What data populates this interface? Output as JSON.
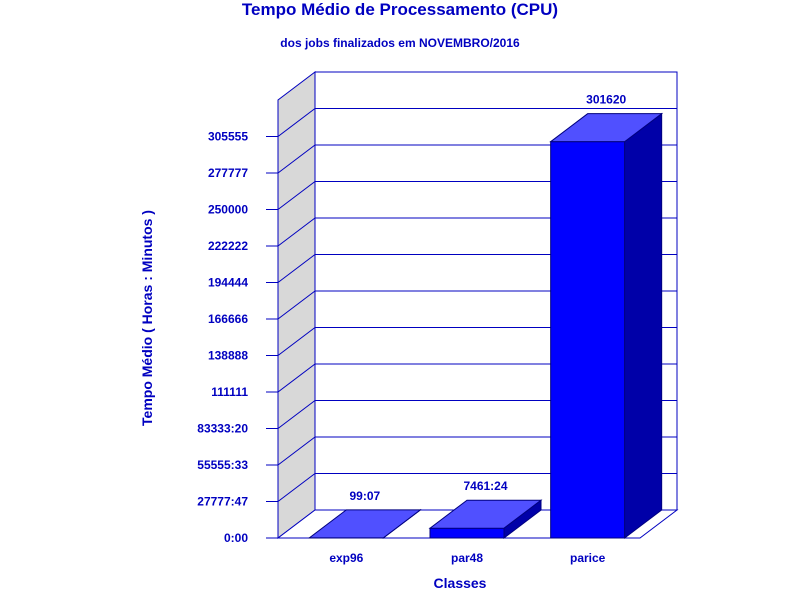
{
  "chart_title": "Tempo Médio de Processamento (CPU)",
  "chart_subtitle": "dos jobs finalizados em NOVEMBRO/2016",
  "colors": {
    "text": "#0000c0",
    "bar_front": "#0000ff",
    "bar_top": "#5050ff",
    "bar_side": "#0000a8",
    "grid": "#0000c0",
    "back_wall": "#ffffff",
    "side_wall": "#d8d8d8"
  },
  "chart_data": {
    "type": "bar",
    "title": "Tempo Médio de Processamento (CPU)",
    "subtitle": "dos jobs finalizados em NOVEMBRO/2016",
    "xlabel": "Classes",
    "ylabel": "Tempo Médio ( Horas : Minutos )",
    "categories": [
      "exp96",
      "par48",
      "parice"
    ],
    "values": [
      99.12,
      7461.4,
      301620
    ],
    "value_labels": [
      "99:07",
      "7461:24",
      "301620"
    ],
    "ylim": [
      0,
      333333.33
    ],
    "yticks": [
      0,
      27777.78,
      55555.56,
      83333.33,
      111111,
      138888,
      166666,
      194444,
      222222,
      250000,
      277777,
      305555
    ],
    "ytick_labels": [
      "0:00",
      "27777:47",
      "55555:33",
      "83333:20",
      "111111",
      "138888",
      "166666",
      "194444",
      "222222",
      "250000",
      "277777",
      "305555"
    ],
    "grid": true,
    "legend": "none",
    "style": "3d"
  }
}
